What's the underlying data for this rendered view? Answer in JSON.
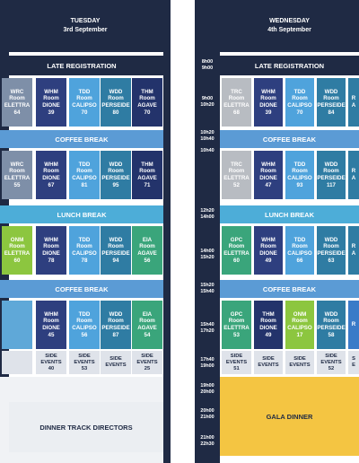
{
  "tuesday": {
    "day": "TUESDAY",
    "date": "3rd September",
    "late_registration": "LATE REGISTRATION",
    "coffee_break_1": "COFFEE BREAK",
    "lunch_break": "LUNCH BREAK",
    "coffee_break_2": "COFFEE BREAK",
    "dinner": "DINNER TRACK DIRECTORS",
    "rows": [
      [
        {
          "code": "WRC",
          "room": "Room",
          "name": "ELETTRA",
          "count": "64",
          "color": "#7e8fa8"
        },
        {
          "code": "WHM",
          "room": "Room",
          "name": "DIONE",
          "count": "39",
          "color": "#2e3f7f"
        },
        {
          "code": "TDD",
          "room": "Room",
          "name": "CALIPSO",
          "count": "70",
          "color": "#4fa3dc"
        },
        {
          "code": "WDD",
          "room": "Room",
          "name": "PERSEIDE",
          "count": "80",
          "color": "#2f7ca3"
        },
        {
          "code": "THM",
          "room": "Room",
          "name": "AGAVE",
          "count": "70",
          "color": "#23336b"
        }
      ],
      [
        {
          "code": "WRC",
          "room": "Room",
          "name": "ELETTRA",
          "count": "55",
          "color": "#7e8fa8"
        },
        {
          "code": "WHM",
          "room": "Room",
          "name": "DIONE",
          "count": "67",
          "color": "#2e3f7f"
        },
        {
          "code": "TDD",
          "room": "Room",
          "name": "CALIPSO",
          "count": "81",
          "color": "#4fa3dc"
        },
        {
          "code": "WDD",
          "room": "Room",
          "name": "PERSEIDE",
          "count": "95",
          "color": "#2f7ca3"
        },
        {
          "code": "THM",
          "room": "Room",
          "name": "AGAVE",
          "count": "71",
          "color": "#23336b"
        }
      ],
      [
        {
          "code": "ONM",
          "room": "Room",
          "name": "ELETTRA",
          "count": "60",
          "color": "#8cc63f"
        },
        {
          "code": "WHM",
          "room": "Room",
          "name": "DIONE",
          "count": "78",
          "color": "#2e3f7f"
        },
        {
          "code": "TDD",
          "room": "Room",
          "name": "CALIPSO",
          "count": "78",
          "color": "#4fa3dc"
        },
        {
          "code": "WDD",
          "room": "Room",
          "name": "PERSEIDE",
          "count": "94",
          "color": "#2f7ca3"
        },
        {
          "code": "EIA",
          "room": "Room",
          "name": "AGAVE",
          "count": "56",
          "color": "#3aa57b"
        }
      ],
      [
        {
          "code": "",
          "room": "",
          "name": "",
          "count": "",
          "color": "#5fa8d8"
        },
        {
          "code": "WHM",
          "room": "Room",
          "name": "DIONE",
          "count": "45",
          "color": "#2e3f7f"
        },
        {
          "code": "TDD",
          "room": "Room",
          "name": "CALIPSO",
          "count": "56",
          "color": "#4fa3dc"
        },
        {
          "code": "WDD",
          "room": "Room",
          "name": "PERSEIDE",
          "count": "87",
          "color": "#2f7ca3"
        },
        {
          "code": "EIA",
          "room": "Room",
          "name": "AGAVE",
          "count": "54",
          "color": "#3aa57b"
        }
      ]
    ],
    "side": [
      {
        "l1": "",
        "l2": "",
        "n": ""
      },
      {
        "l1": "SIDE",
        "l2": "EVENTS",
        "n": "40"
      },
      {
        "l1": "SIDE",
        "l2": "EVENTS",
        "n": "53"
      },
      {
        "l1": "SIDE",
        "l2": "EVENTS",
        "n": ""
      },
      {
        "l1": "SIDE",
        "l2": "EVENTS",
        "n": "25"
      }
    ]
  },
  "wednesday": {
    "day": "WEDNESDAY",
    "date": "4th September",
    "late_registration": "LATE REGISTRATION",
    "coffee_break_1": "COFFEE BREAK",
    "lunch_break": "LUNCH BREAK",
    "coffee_break_2": "COFFEE BREAK",
    "gala": "GALA DINNER",
    "times": [
      {
        "a": "8h00",
        "b": "9h00"
      },
      {
        "a": "9h00",
        "b": "10h20"
      },
      {
        "a": "10h20",
        "b": "10h40"
      },
      {
        "a": "10h40",
        "b": ""
      },
      {
        "a": "12h20",
        "b": "14h00"
      },
      {
        "a": "14h00",
        "b": "15h20"
      },
      {
        "a": "15h20",
        "b": "15h40"
      },
      {
        "a": "15h40",
        "b": "17h20"
      },
      {
        "a": "17h40",
        "b": "19h00"
      },
      {
        "a": "19h00",
        "b": "20h00"
      },
      {
        "a": "20h00",
        "b": "21h00"
      },
      {
        "a": "21h00",
        "b": "22h30"
      }
    ],
    "rows": [
      [
        {
          "code": "TRC",
          "room": "Room",
          "name": "ELETTRA",
          "count": "68",
          "color": "#b8bcc2"
        },
        {
          "code": "WHM",
          "room": "Room",
          "name": "DIONE",
          "count": "39",
          "color": "#2e3f7f"
        },
        {
          "code": "TDD",
          "room": "Room",
          "name": "CALIPSO",
          "count": "70",
          "color": "#4fa3dc"
        },
        {
          "code": "WDD",
          "room": "Room",
          "name": "PERSEIDE",
          "count": "84",
          "color": "#2f7ca3"
        },
        {
          "code": "R",
          "room": "",
          "name": "A",
          "count": "",
          "color": "#2f7ca3"
        }
      ],
      [
        {
          "code": "TRC",
          "room": "Room",
          "name": "ELETTRA",
          "count": "52",
          "color": "#b8bcc2"
        },
        {
          "code": "WHM",
          "room": "Room",
          "name": "DIONE",
          "count": "47",
          "color": "#2e3f7f"
        },
        {
          "code": "TDD",
          "room": "Room",
          "name": "CALIPSO",
          "count": "93",
          "color": "#4fa3dc"
        },
        {
          "code": "WDD",
          "room": "Room",
          "name": "PERSEIDE",
          "count": "117",
          "color": "#2f7ca3"
        },
        {
          "code": "R",
          "room": "",
          "name": "A",
          "count": "",
          "color": "#2f7ca3"
        }
      ],
      [
        {
          "code": "GPC",
          "room": "Room",
          "name": "ELETTRA",
          "count": "60",
          "color": "#3aa57b"
        },
        {
          "code": "WHM",
          "room": "Room",
          "name": "DIONE",
          "count": "49",
          "color": "#2e3f7f"
        },
        {
          "code": "TDD",
          "room": "Room",
          "name": "CALIPSO",
          "count": "66",
          "color": "#4fa3dc"
        },
        {
          "code": "WDD",
          "room": "Room",
          "name": "PERSEIDE",
          "count": "63",
          "color": "#2f7ca3"
        },
        {
          "code": "R",
          "room": "",
          "name": "A",
          "count": "",
          "color": "#2f7ca3"
        }
      ],
      [
        {
          "code": "GPC",
          "room": "Room",
          "name": "ELETTRA",
          "count": "53",
          "color": "#3aa57b"
        },
        {
          "code": "THM",
          "room": "Room",
          "name": "DIONE",
          "count": "49",
          "color": "#23336b"
        },
        {
          "code": "ONM",
          "room": "Room",
          "name": "CALIPSO",
          "count": "17",
          "color": "#8cc63f"
        },
        {
          "code": "WDD",
          "room": "Room",
          "name": "PERSEIDE",
          "count": "58",
          "color": "#2f7ca3"
        },
        {
          "code": "R",
          "room": "",
          "name": "",
          "count": "",
          "color": "#3a7bc8"
        }
      ]
    ],
    "side": [
      {
        "l1": "SIDE",
        "l2": "EVENTS",
        "n": "51"
      },
      {
        "l1": "SIDE",
        "l2": "EVENTS",
        "n": ""
      },
      {
        "l1": "SIDE",
        "l2": "EVENTS",
        "n": ""
      },
      {
        "l1": "SIDE",
        "l2": "EVENTS",
        "n": "52"
      },
      {
        "l1": "S",
        "l2": "E",
        "n": ""
      }
    ]
  },
  "colors": {
    "navy": "#1f2a44",
    "break": "#5b9bd5",
    "gala": "#f4c542",
    "side": "#dfe3ea"
  }
}
